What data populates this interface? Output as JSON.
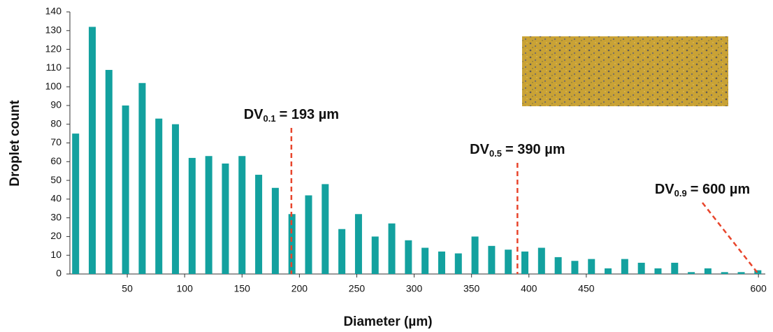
{
  "chart_data": {
    "type": "histogram",
    "xlabel": "Diameter (µm)",
    "ylabel": "Droplet count",
    "x": [
      5,
      19.5,
      34,
      48.5,
      63,
      77.5,
      92,
      106.5,
      121,
      135.5,
      150,
      164.5,
      179,
      193.5,
      208,
      222.5,
      237,
      251.5,
      266,
      280.5,
      295,
      309.5,
      324,
      338.5,
      353,
      367.5,
      382,
      396.5,
      411,
      425.5,
      440,
      454.5,
      469,
      483.5,
      498,
      512.5,
      527,
      541.5,
      556,
      570.5,
      585,
      599.5
    ],
    "values": [
      75,
      132,
      109,
      90,
      102,
      83,
      80,
      62,
      63,
      59,
      63,
      53,
      46,
      32,
      42,
      48,
      24,
      32,
      20,
      27,
      18,
      14,
      12,
      11,
      20,
      15,
      13,
      12,
      14,
      9,
      7,
      8,
      3,
      8,
      6,
      3,
      6,
      1,
      3,
      1,
      1,
      2
    ],
    "color": "#13a19f",
    "xlim": [
      0,
      606
    ],
    "ylim": [
      0,
      140
    ],
    "xticks": [
      50,
      100,
      150,
      200,
      250,
      300,
      350,
      400,
      450,
      600
    ],
    "yticks": [
      0,
      10,
      20,
      30,
      40,
      50,
      60,
      70,
      80,
      90,
      100,
      110,
      120,
      130,
      140
    ],
    "annotations": [
      {
        "label": "DV",
        "subscript": "0.1",
        "text": "= 193 µm",
        "x": 193
      },
      {
        "label": "DV",
        "subscript": "0.5",
        "text": "= 390 µm",
        "x": 390
      },
      {
        "label": "DV",
        "subscript": "0.9",
        "text": "= 600 µm",
        "x": 600
      }
    ],
    "annotation_color": "#e8452c"
  }
}
